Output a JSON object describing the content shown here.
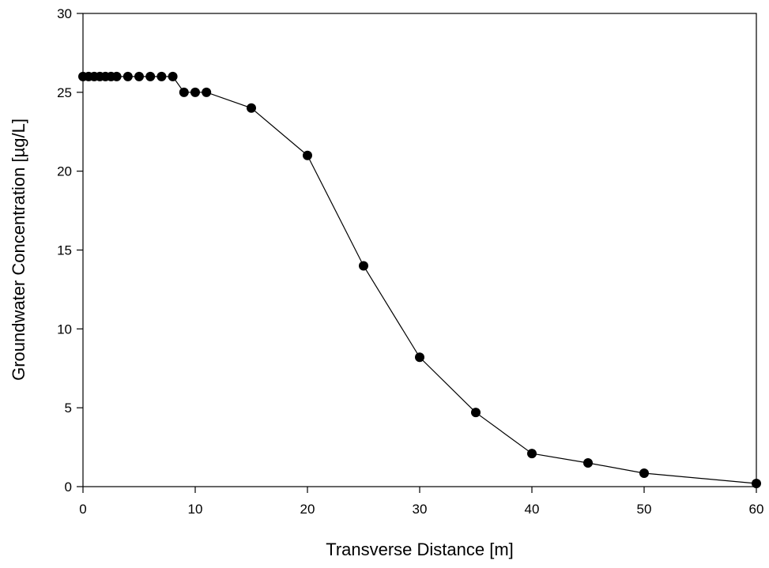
{
  "chart_data": {
    "type": "line",
    "title": "",
    "xlabel": "Transverse Distance [m]",
    "ylabel": "Groundwater Concentration [µg/L]",
    "xlim": [
      0,
      60
    ],
    "ylim": [
      0,
      30
    ],
    "xticks": [
      0,
      10,
      20,
      30,
      40,
      50,
      60
    ],
    "yticks": [
      0,
      5,
      10,
      15,
      20,
      25,
      30
    ],
    "grid": false,
    "legend": "none",
    "series": [
      {
        "color": "#000000",
        "marker": "filled-circle",
        "points": [
          {
            "x": 0,
            "y": 26
          },
          {
            "x": 0.5,
            "y": 26
          },
          {
            "x": 1,
            "y": 26
          },
          {
            "x": 1.5,
            "y": 26
          },
          {
            "x": 2,
            "y": 26
          },
          {
            "x": 2.5,
            "y": 26
          },
          {
            "x": 3,
            "y": 26
          },
          {
            "x": 4,
            "y": 26
          },
          {
            "x": 5,
            "y": 26
          },
          {
            "x": 6,
            "y": 26
          },
          {
            "x": 7,
            "y": 26
          },
          {
            "x": 8,
            "y": 26
          },
          {
            "x": 9,
            "y": 25
          },
          {
            "x": 10,
            "y": 25
          },
          {
            "x": 11,
            "y": 25
          },
          {
            "x": 15,
            "y": 24
          },
          {
            "x": 20,
            "y": 21
          },
          {
            "x": 25,
            "y": 14
          },
          {
            "x": 30,
            "y": 8.2
          },
          {
            "x": 35,
            "y": 4.7
          },
          {
            "x": 40,
            "y": 2.1
          },
          {
            "x": 45,
            "y": 1.5
          },
          {
            "x": 50,
            "y": 0.85
          },
          {
            "x": 60,
            "y": 0.2
          }
        ]
      }
    ]
  }
}
